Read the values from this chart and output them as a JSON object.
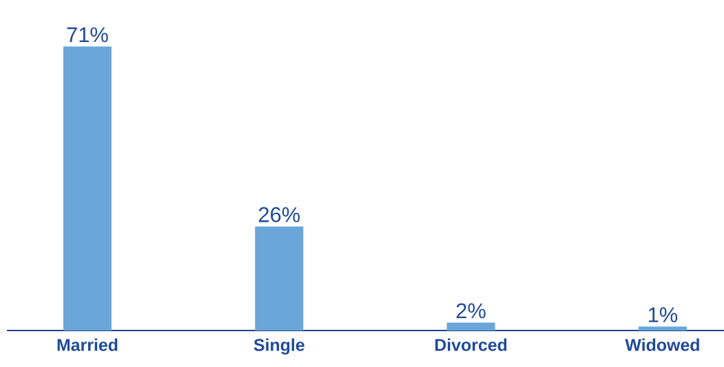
{
  "chart_data": {
    "type": "bar",
    "categories": [
      "Married",
      "Single",
      "Divorced",
      "Widowed"
    ],
    "values": [
      71,
      26,
      2,
      1
    ],
    "value_labels": [
      "71%",
      "26%",
      "2%",
      "1%"
    ],
    "color": "#6aa6d8",
    "tick_labels": "x"
  }
}
